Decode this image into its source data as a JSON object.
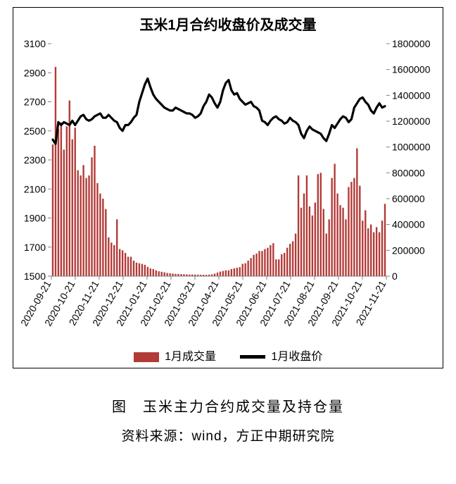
{
  "chart": {
    "type": "bar+line",
    "title": "玉米1月合约收盘价及成交量",
    "title_fontsize": 20,
    "title_weight": "bold",
    "background_color": "#ffffff",
    "border_color": "#000000",
    "axis_tick_color": "#808080",
    "axis_label_color": "#000000",
    "tick_fontsize": 14,
    "x": {
      "labels": [
        "2020-09-21",
        "2020-10-21",
        "2020-11-21",
        "2020-12-21",
        "2021-01-21",
        "2021-02-21",
        "2021-03-21",
        "2021-04-21",
        "2021-05-21",
        "2021-06-21",
        "2021-07-21",
        "2021-08-21",
        "2021-09-21",
        "2021-10-21",
        "2021-11-21"
      ],
      "rotation": -60
    },
    "y_left": {
      "min": 1500,
      "max": 3100,
      "step": 200,
      "ticks": [
        1500,
        1700,
        1900,
        2100,
        2300,
        2500,
        2700,
        2900,
        3100
      ]
    },
    "y_right": {
      "min": 0,
      "max": 1800000,
      "step": 200000,
      "ticks": [
        0,
        200000,
        400000,
        600000,
        800000,
        1000000,
        1200000,
        1400000,
        1600000,
        1800000
      ]
    },
    "legend": {
      "items": [
        {
          "key": "volume",
          "label": "1月成交量",
          "type": "bar"
        },
        {
          "key": "close",
          "label": "1月收盘价",
          "type": "line"
        }
      ]
    },
    "series": {
      "volume": {
        "axis": "right",
        "color": "#b23a37",
        "bar_width": 0.6,
        "values": [
          1020000,
          1620000,
          1140000,
          1190000,
          980000,
          1160000,
          1360000,
          1060000,
          1150000,
          820000,
          780000,
          860000,
          760000,
          780000,
          920000,
          1010000,
          720000,
          640000,
          600000,
          520000,
          300000,
          260000,
          240000,
          440000,
          210000,
          200000,
          180000,
          150000,
          150000,
          120000,
          105000,
          100000,
          95000,
          88000,
          72000,
          60000,
          55000,
          45000,
          38000,
          34000,
          30000,
          25000,
          22000,
          20000,
          18000,
          17000,
          16000,
          15000,
          14000,
          13000,
          13000,
          12000,
          12000,
          11000,
          11000,
          10000,
          12000,
          14000,
          20000,
          28000,
          35000,
          40000,
          45000,
          45000,
          55000,
          60000,
          65000,
          70000,
          95000,
          100000,
          120000,
          140000,
          165000,
          175000,
          195000,
          195000,
          210000,
          220000,
          240000,
          255000,
          130000,
          130000,
          170000,
          180000,
          220000,
          250000,
          270000,
          330000,
          780000,
          530000,
          640000,
          780000,
          540000,
          470000,
          570000,
          790000,
          800000,
          520000,
          330000,
          440000,
          760000,
          870000,
          640000,
          550000,
          530000,
          440000,
          690000,
          730000,
          760000,
          990000,
          700000,
          430000,
          510000,
          370000,
          400000,
          340000,
          380000,
          340000,
          430000,
          560000
        ]
      },
      "close": {
        "axis": "left",
        "color": "#000000",
        "line_width": 3.2,
        "values": [
          2440,
          2410,
          2560,
          2540,
          2560,
          2550,
          2540,
          2570,
          2540,
          2570,
          2600,
          2610,
          2580,
          2570,
          2580,
          2600,
          2610,
          2620,
          2590,
          2590,
          2610,
          2590,
          2570,
          2560,
          2520,
          2500,
          2540,
          2540,
          2560,
          2590,
          2610,
          2700,
          2760,
          2820,
          2860,
          2800,
          2750,
          2720,
          2700,
          2680,
          2660,
          2650,
          2640,
          2640,
          2660,
          2650,
          2640,
          2630,
          2620,
          2620,
          2610,
          2590,
          2600,
          2620,
          2670,
          2700,
          2750,
          2730,
          2690,
          2660,
          2700,
          2780,
          2830,
          2850,
          2780,
          2750,
          2760,
          2720,
          2700,
          2680,
          2690,
          2700,
          2670,
          2660,
          2640,
          2570,
          2560,
          2540,
          2570,
          2590,
          2600,
          2580,
          2570,
          2550,
          2560,
          2590,
          2570,
          2560,
          2540,
          2480,
          2450,
          2500,
          2530,
          2510,
          2500,
          2490,
          2480,
          2450,
          2430,
          2480,
          2540,
          2520,
          2550,
          2580,
          2600,
          2590,
          2560,
          2580,
          2660,
          2690,
          2720,
          2730,
          2700,
          2680,
          2640,
          2620,
          2660,
          2690,
          2660,
          2670
        ]
      }
    }
  },
  "caption": "图　玉米主力合约成交量及持仓量",
  "source": "资料来源：wind，方正中期研究院"
}
